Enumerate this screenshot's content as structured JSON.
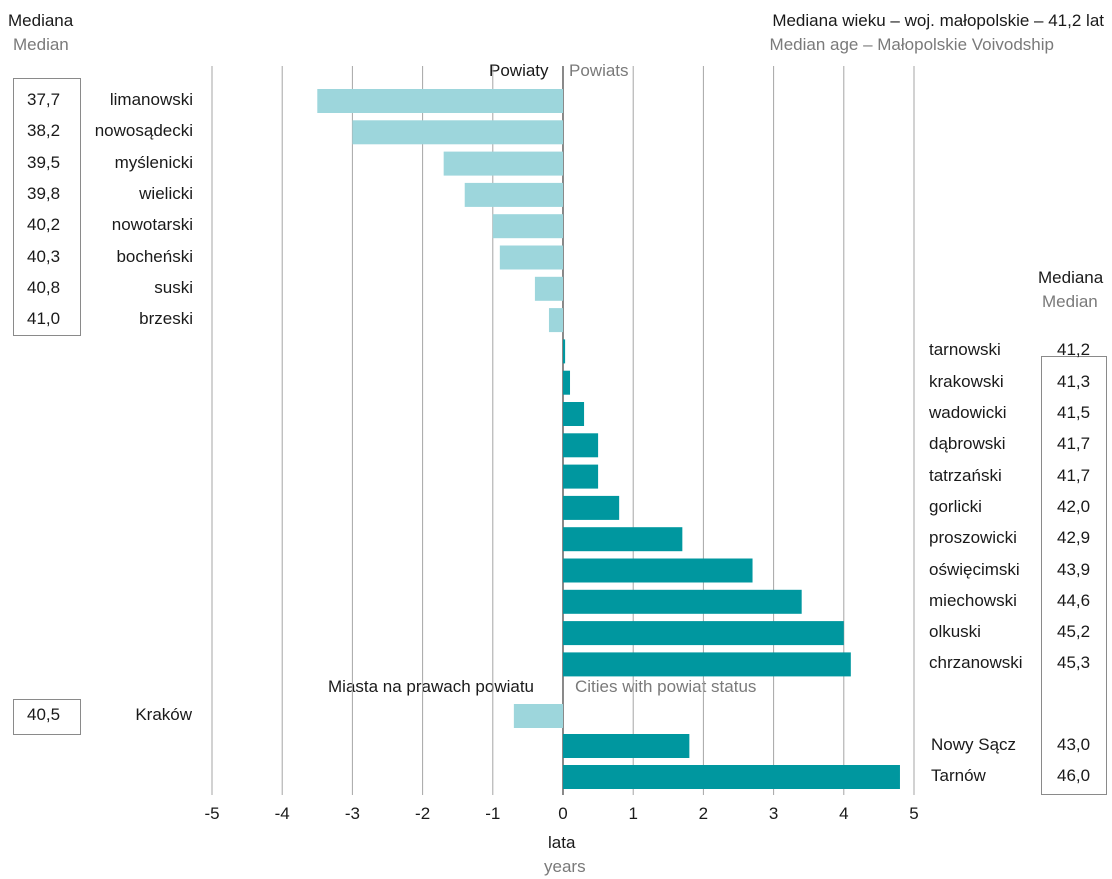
{
  "colors": {
    "below": "#9dd6dc",
    "above": "#00979f",
    "grid": "#a6a6a6",
    "box": "#8a8a8a"
  },
  "header": {
    "left_pl": "Mediana",
    "left_en": "Median",
    "right_pl": "Mediana wieku – woj. małopolskie – 41,2 lat",
    "right_en": "Median age – Małopolskie Voivodship"
  },
  "mid_header": {
    "pl": "Mediana",
    "en": "Median"
  },
  "section1": {
    "pl": "Powiaty",
    "en": "Powiats"
  },
  "section2": {
    "pl": "Miasta na prawach powiatu",
    "en": "Cities with powiat status"
  },
  "axis": {
    "pl": "lata",
    "en": "years"
  },
  "chart_data": {
    "type": "bar",
    "orientation": "horizontal",
    "title": "Mediana wieku – woj. małopolskie – 41,2 lat",
    "subtitle": "Median age – Małopolskie Voivodship",
    "xlabel": "lata / years",
    "reference_median": 41.2,
    "xlim": [
      -5,
      5
    ],
    "xticks": [
      "-5",
      "-4",
      "-3",
      "-2",
      "-1",
      "0",
      "1",
      "2",
      "3",
      "4",
      "5"
    ],
    "grid": true,
    "powiats": [
      {
        "name": "limanowski",
        "median": "37,7",
        "diff": -3.5
      },
      {
        "name": "nowosądecki",
        "median": "38,2",
        "diff": -3.0
      },
      {
        "name": "myślenicki",
        "median": "39,5",
        "diff": -1.7
      },
      {
        "name": "wielicki",
        "median": "39,8",
        "diff": -1.4
      },
      {
        "name": "nowotarski",
        "median": "40,2",
        "diff": -1.0
      },
      {
        "name": "bocheński",
        "median": "40,3",
        "diff": -0.9
      },
      {
        "name": "suski",
        "median": "40,8",
        "diff": -0.4
      },
      {
        "name": "brzeski",
        "median": "41,0",
        "diff": -0.2
      },
      {
        "name": "tarnowski",
        "median": "41,2",
        "diff": 0.03
      },
      {
        "name": "krakowski",
        "median": "41,3",
        "diff": 0.1
      },
      {
        "name": "wadowicki",
        "median": "41,5",
        "diff": 0.3
      },
      {
        "name": "dąbrowski",
        "median": "41,7",
        "diff": 0.5
      },
      {
        "name": "tatrzański",
        "median": "41,7",
        "diff": 0.5
      },
      {
        "name": "gorlicki",
        "median": "42,0",
        "diff": 0.8
      },
      {
        "name": "proszowicki",
        "median": "42,9",
        "diff": 1.7
      },
      {
        "name": "oświęcimski",
        "median": "43,9",
        "diff": 2.7
      },
      {
        "name": "miechowski",
        "median": "44,6",
        "diff": 3.4
      },
      {
        "name": "olkuski",
        "median": "45,2",
        "diff": 4.0
      },
      {
        "name": "chrzanowski",
        "median": "45,3",
        "diff": 4.1
      }
    ],
    "cities": [
      {
        "name": "Kraków",
        "median": "40,5",
        "diff": -0.7
      },
      {
        "name": "Nowy Sącz",
        "median": "43,0",
        "diff": 1.8
      },
      {
        "name": "Tarnów",
        "median": "46,0",
        "diff": 4.8
      }
    ]
  }
}
